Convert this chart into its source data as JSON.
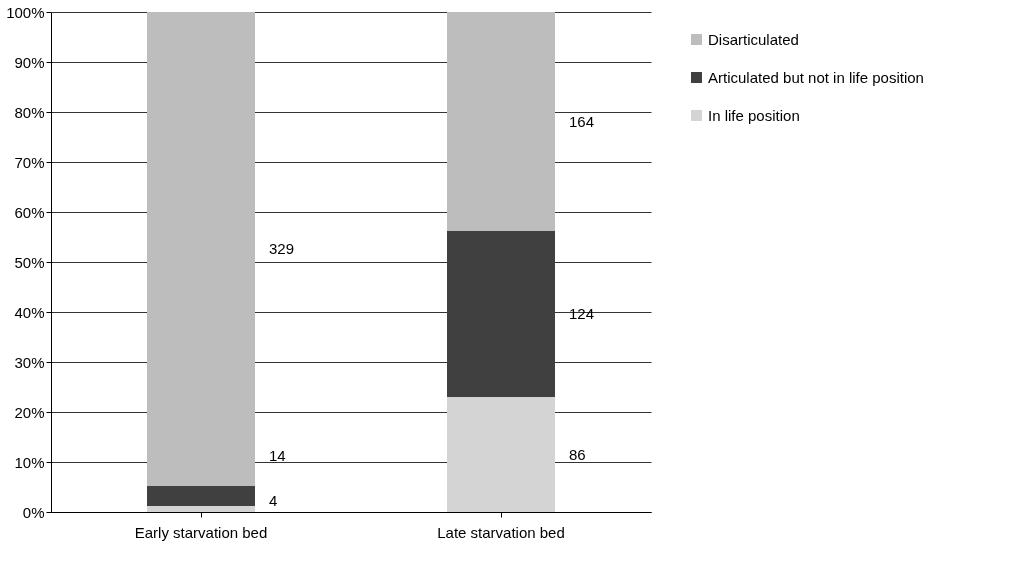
{
  "chart_data": {
    "type": "bar",
    "stacked": true,
    "categories": [
      "Early starvation bed",
      "Late starvation bed"
    ],
    "series": [
      {
        "name": "In life position",
        "color": "#d4d4d4",
        "values": [
          1.2,
          23.0
        ]
      },
      {
        "name": "Articulated but not in life position",
        "color": "#404040",
        "values": [
          4.0,
          33.2
        ]
      },
      {
        "name": "Disarticulated",
        "color": "#bdbdbd",
        "values": [
          94.8,
          43.8
        ]
      }
    ],
    "annotations": [
      "4",
      "14",
      "329",
      "86",
      "124",
      "164"
    ],
    "ylim": [
      0,
      100
    ],
    "yticks": [
      {
        "value": 0,
        "label": "0%"
      },
      {
        "value": 10,
        "label": "10%"
      },
      {
        "value": 20,
        "label": "20%"
      },
      {
        "value": 30,
        "label": "30%"
      },
      {
        "value": 40,
        "label": "40%"
      },
      {
        "value": 50,
        "label": "50%"
      },
      {
        "value": 60,
        "label": "60%"
      },
      {
        "value": 70,
        "label": "70%"
      },
      {
        "value": 80,
        "label": "80%"
      },
      {
        "value": 90,
        "label": "90%"
      },
      {
        "value": 100,
        "label": "100%"
      }
    ],
    "grid": "y",
    "legend": "right"
  }
}
